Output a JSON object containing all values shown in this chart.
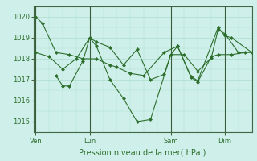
{
  "bg_color": "#cff0ea",
  "grid_color": "#aaddcc",
  "line_color": "#2d6e2d",
  "marker_color": "#2d6e2d",
  "xlabel": "Pression niveau de la mer( hPa )",
  "ylim": [
    1014.5,
    1020.5
  ],
  "yticks": [
    1015,
    1016,
    1017,
    1018,
    1019,
    1020
  ],
  "xtick_labels": [
    "Ven",
    "Lun",
    "Sam",
    "Dim"
  ],
  "xtick_positions": [
    0,
    24,
    60,
    84
  ],
  "vlines": [
    0,
    24,
    60,
    84
  ],
  "xlim": [
    -1,
    96
  ],
  "series": [
    [
      1020.0,
      1019.7,
      1018.3,
      1018.2,
      1018.0,
      1018.0,
      1017.7,
      1017.6,
      1017.3,
      1017.2,
      1018.3,
      1018.6,
      1017.1,
      1016.9,
      1018.1,
      1018.2,
      1018.2,
      1018.3
    ],
    [
      1018.3,
      1018.1,
      1017.5,
      1018.0,
      1019.0,
      1018.8,
      1018.55,
      1017.7,
      1018.45,
      1017.0,
      1017.25,
      1018.2,
      1018.2,
      1017.4,
      1018.05,
      1019.4,
      1019.2,
      1018.3,
      1018.3
    ],
    [
      1017.2,
      1016.7,
      1016.7,
      1017.9,
      1019.0,
      1018.6,
      1017.0,
      1016.1,
      1015.0,
      1015.1,
      1018.2,
      1018.6,
      1017.15,
      1016.95,
      1019.5,
      1019.1,
      1019.0,
      1018.3
    ]
  ],
  "series_x": [
    [
      0,
      3,
      9,
      15,
      21,
      27,
      33,
      36,
      42,
      48,
      57,
      63,
      69,
      72,
      78,
      81,
      87,
      93
    ],
    [
      0,
      6,
      12,
      18,
      24,
      27,
      33,
      39,
      45,
      51,
      57,
      60,
      66,
      72,
      78,
      81,
      84,
      90,
      96
    ],
    [
      9,
      12,
      15,
      21,
      24,
      27,
      33,
      39,
      45,
      51,
      60,
      63,
      69,
      72,
      81,
      84,
      87,
      96
    ]
  ]
}
